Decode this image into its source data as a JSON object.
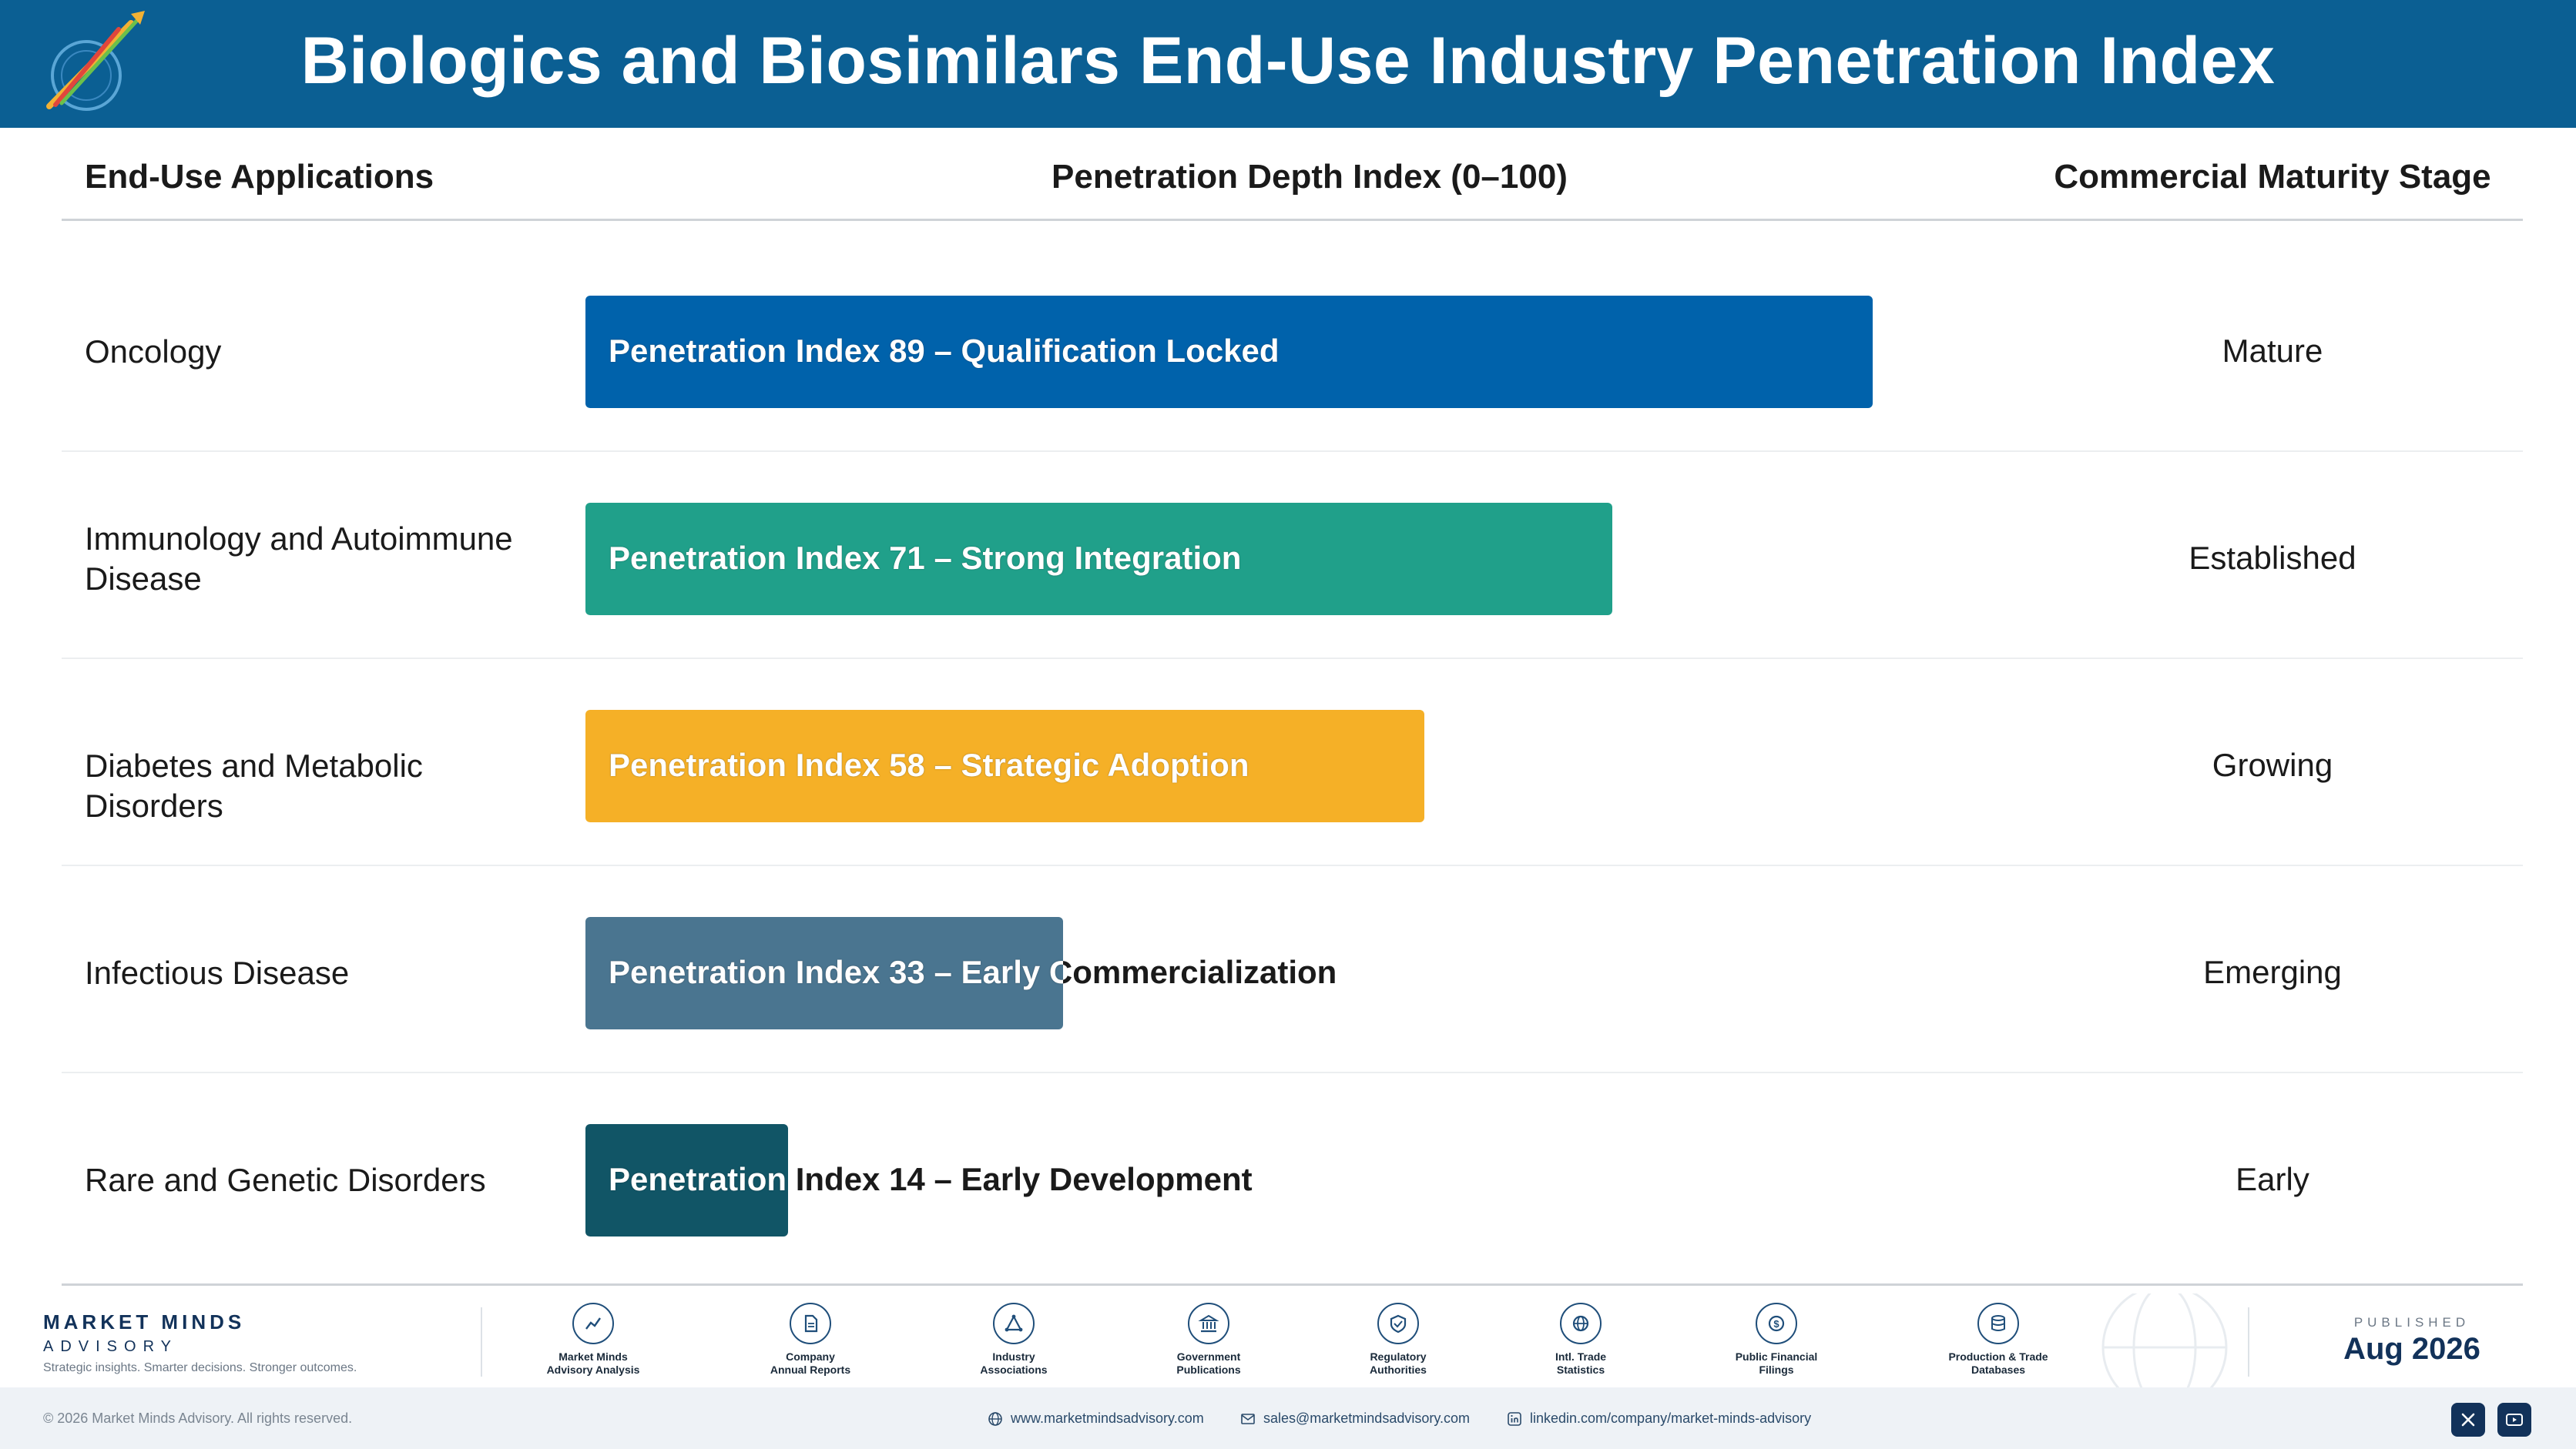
{
  "header": {
    "title": "Biologics and Biosimilars End-Use Industry Penetration Index"
  },
  "columns": {
    "applications": "End-Use Applications",
    "penetration": "Penetration Depth Index (0–100)",
    "maturity": "Commercial Maturity Stage"
  },
  "chart_data": {
    "type": "bar",
    "orientation": "horizontal",
    "xlim": [
      0,
      100
    ],
    "categories": [
      "Oncology",
      "Immunology and Autoimmune Disease",
      "Diabetes and Metabolic Disorders",
      "Infectious Disease",
      "Rare and Genetic Disorders"
    ],
    "values": [
      89,
      71,
      58,
      33,
      14
    ],
    "bar_labels": [
      "Penetration Index 89 – Qualification Locked",
      "Penetration Index 71 – Strong Integration",
      "Penetration Index 58 – Strategic Adoption",
      "Penetration Index 33 – Early Commercialization",
      "Penetration Index 14 – Early Development"
    ],
    "maturity_stages": [
      "Mature",
      "Established",
      "Growing",
      "Emerging",
      "Early"
    ],
    "colors": [
      "#0062ab",
      "#20a08a",
      "#f5b027",
      "#4a7590",
      "#115566"
    ]
  },
  "footer": {
    "brand_name": "MARKET MINDS",
    "brand_sub": "ADVISORY",
    "tagline": "Strategic insights. Smarter decisions. Stronger outcomes.",
    "sources": [
      {
        "icon": "trend-chart-icon",
        "label1": "Market Minds",
        "label2": "Advisory Analysis"
      },
      {
        "icon": "document-icon",
        "label1": "Company",
        "label2": "Annual Reports"
      },
      {
        "icon": "network-icon",
        "label1": "Industry",
        "label2": "Associations"
      },
      {
        "icon": "government-building-icon",
        "label1": "Government",
        "label2": "Publications"
      },
      {
        "icon": "shield-check-icon",
        "label1": "Regulatory",
        "label2": "Authorities"
      },
      {
        "icon": "globe-icon",
        "label1": "Intl. Trade",
        "label2": "Statistics"
      },
      {
        "icon": "dollar-coin-icon",
        "label1": "Public Financial",
        "label2": "Filings"
      },
      {
        "icon": "database-icon",
        "label1": "Production & Trade",
        "label2": "Databases"
      }
    ],
    "published_label": "PUBLISHED",
    "published_date": "Aug 2026",
    "copyright": "© 2026 Market Minds Advisory. All rights reserved.",
    "website": "www.marketmindsadvisory.com",
    "email": "sales@marketmindsadvisory.com",
    "linkedin": "linkedin.com/company/market-minds-advisory"
  }
}
